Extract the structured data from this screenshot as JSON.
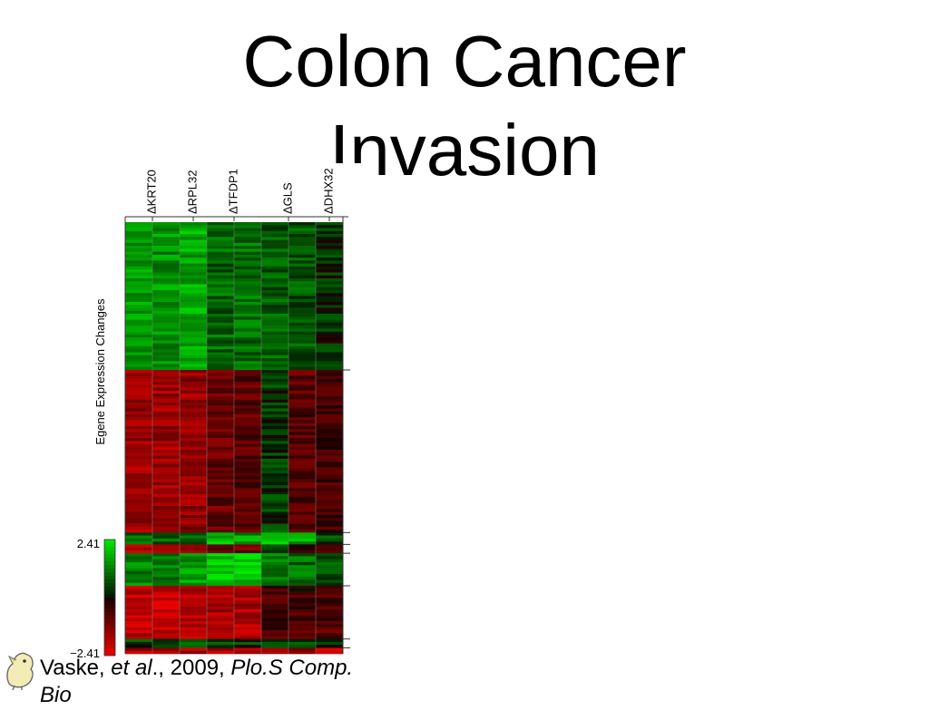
{
  "slide": {
    "title_line1": "Colon Cancer",
    "title_line2": "Invasion",
    "citation": {
      "author": "Vaske, ",
      "etal": "et al",
      "sep1": "., 2009, ",
      "journal_line1": "Plo.S Comp.",
      "journal_line2": "Bio"
    },
    "mascot_icon": "pig-mascot-icon"
  },
  "chart_data": {
    "type": "heatmap",
    "columns": [
      "ΔKRT20",
      "ΔRPL32",
      "ΔTFDP1",
      "ΔGLS",
      "ΔDHX32"
    ],
    "ylabel": "Egene Expression Changes",
    "colorbar": {
      "max_label": "2.41",
      "min_label": "−2.41",
      "min": -2.41,
      "max": 2.41,
      "high_color": "#2ee82e",
      "mid_color": "#000000",
      "low_color": "#ee1c1c"
    },
    "blocks": [
      {
        "rows": 50,
        "means": [
          1.6,
          1.4,
          1.7,
          0.9,
          1.0,
          0.8,
          0.7,
          0.3
        ]
      },
      {
        "rows": 55,
        "means": [
          -1.5,
          -1.5,
          -1.4,
          -0.9,
          -0.8,
          0.4,
          -0.7,
          -0.5
        ]
      },
      {
        "rows": 4,
        "means": [
          0.9,
          0.9,
          1.0,
          1.8,
          1.5,
          2.0,
          1.6,
          0.6
        ]
      },
      {
        "rows": 3,
        "means": [
          -1.8,
          -1.9,
          -1.7,
          -1.1,
          -1.0,
          0.3,
          -0.4,
          -0.3
        ]
      },
      {
        "rows": 11,
        "means": [
          1.2,
          1.3,
          1.6,
          2.0,
          2.0,
          1.2,
          1.0,
          0.7
        ]
      },
      {
        "rows": 18,
        "means": [
          -1.9,
          -1.9,
          -1.8,
          -1.6,
          -1.7,
          -0.6,
          -0.5,
          -0.7
        ]
      },
      {
        "rows": 3,
        "means": [
          0.5,
          0.6,
          0.6,
          0.5,
          0.4,
          0.5,
          0.5,
          0.4
        ]
      },
      {
        "rows": 2,
        "means": [
          -1.6,
          -1.6,
          -1.6,
          -1.6,
          -1.6,
          -1.3,
          -1.3,
          -1.8
        ]
      }
    ]
  }
}
